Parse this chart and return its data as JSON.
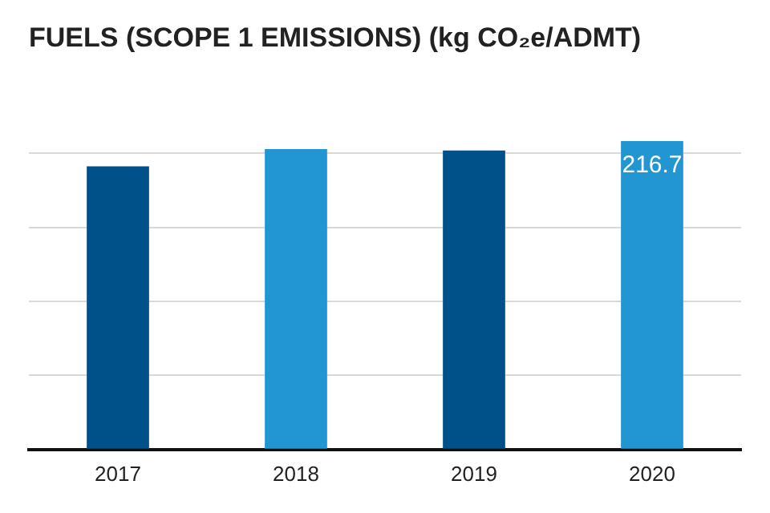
{
  "chart_data": {
    "type": "bar",
    "title": "FUELS (SCOPE 1 EMISSIONS) (kg CO₂e/ADMT)",
    "categories": [
      "2017",
      "2018",
      "2019",
      "2020"
    ],
    "values": [
      199,
      211,
      210,
      216.7
    ],
    "colors": [
      "#00508a",
      "#2196d3",
      "#00508a",
      "#2196d3"
    ],
    "value_labels": [
      null,
      null,
      null,
      "216.7"
    ],
    "yticks": [
      {
        "value": 0,
        "label": null
      },
      {
        "value": 52,
        "label": null
      },
      {
        "value": 104,
        "label": null
      },
      {
        "value": 156,
        "label": null
      },
      {
        "value": 208,
        "label": null
      }
    ],
    "tick_labels": "x",
    "grid": "y",
    "legend": false
  }
}
